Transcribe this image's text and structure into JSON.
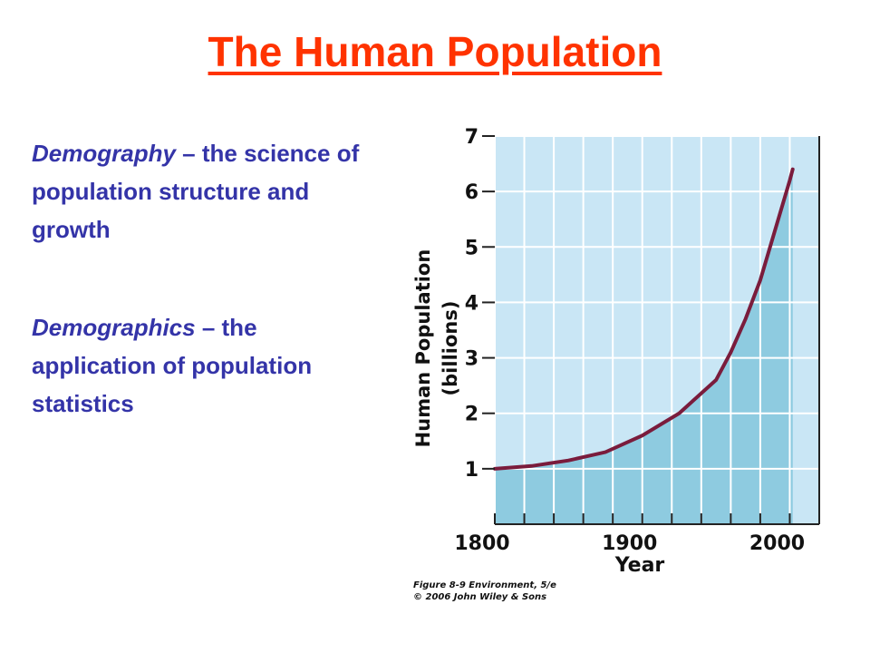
{
  "header": {
    "title": "The Human Population"
  },
  "definitions": [
    {
      "term": "Demography",
      "definition": "– the science of population structure and growth"
    },
    {
      "term": "Demographics",
      "definition": "– the application of population statistics"
    }
  ],
  "chart_data": {
    "type": "line",
    "x_label": "Year",
    "y_label": [
      "Human Population",
      "(billions)"
    ],
    "x": [
      1800,
      1825,
      1850,
      1875,
      1900,
      1925,
      1950,
      1960,
      1970,
      1980,
      1990,
      2000,
      2002
    ],
    "series": [
      {
        "color": "#7a1c3c",
        "fill": "#8ecbe0",
        "values": [
          1.0,
          1.05,
          1.15,
          1.3,
          1.6,
          2.0,
          2.6,
          3.1,
          3.7,
          4.4,
          5.3,
          6.2,
          6.4
        ]
      }
    ],
    "xlim": [
      1800,
      2020
    ],
    "ylim": [
      0,
      7
    ],
    "xticks": [
      1800,
      1900,
      2000
    ],
    "yticks": [
      1,
      2,
      3,
      4,
      5,
      6,
      7
    ],
    "xgridlines": [
      1800,
      1820,
      1840,
      1860,
      1880,
      1900,
      1920,
      1940,
      1960,
      1980,
      2000,
      2020
    ],
    "background": "#c9e6f5",
    "grid": true,
    "caption": [
      "Figure 8-9 Environment, 5/e",
      "© 2006 John Wiley & Sons"
    ]
  }
}
